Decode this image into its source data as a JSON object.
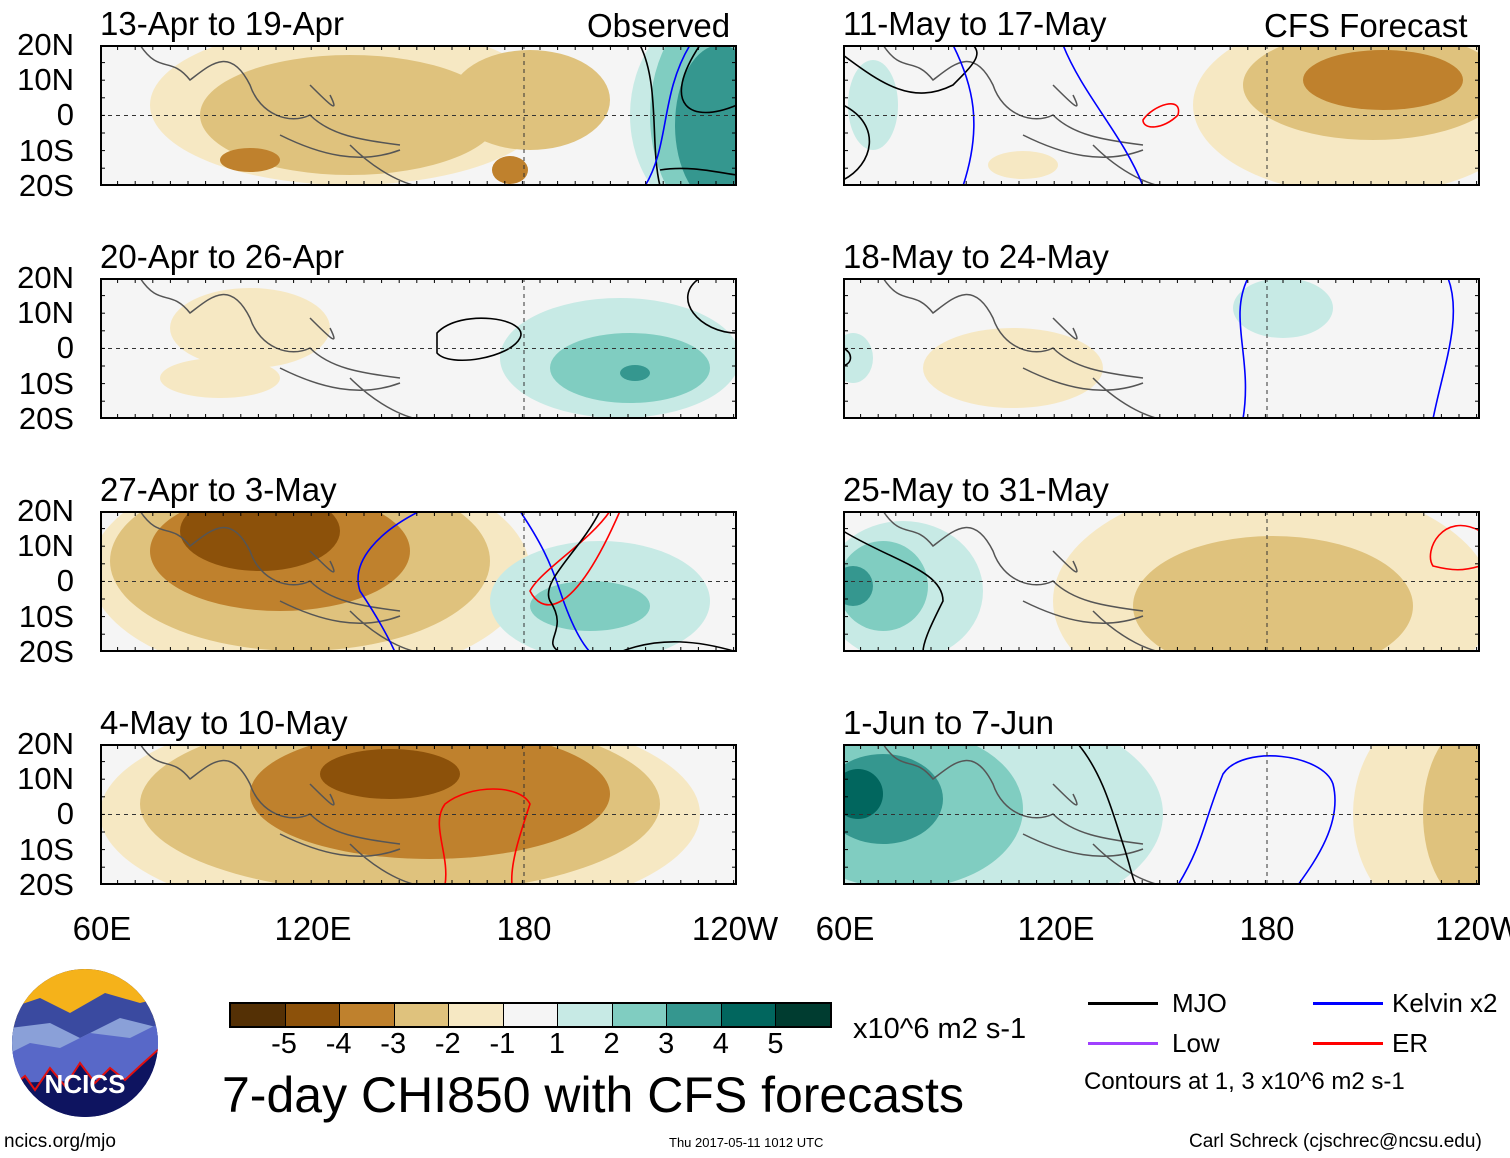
{
  "header": {
    "observed_label": "Observed",
    "forecast_label": "CFS Forecast"
  },
  "panels": {
    "observed": [
      {
        "title": "13-Apr to 19-Apr"
      },
      {
        "title": "20-Apr to 26-Apr"
      },
      {
        "title": "27-Apr to 3-May"
      },
      {
        "title": "4-May to 10-May"
      }
    ],
    "forecast": [
      {
        "title": "11-May to 17-May"
      },
      {
        "title": "18-May to 24-May"
      },
      {
        "title": "25-May to 31-May"
      },
      {
        "title": "1-Jun to 7-Jun"
      }
    ]
  },
  "axes": {
    "y_labels": [
      "20N",
      "10N",
      "0",
      "10S",
      "20S"
    ],
    "x_labels": [
      "60E",
      "120E",
      "180",
      "120W"
    ]
  },
  "colorbar": {
    "colors": [
      "#543005",
      "#8c510a",
      "#bf812d",
      "#dfc27d",
      "#f6e8c3",
      "#f5f5f5",
      "#c7eae5",
      "#80cdc1",
      "#35978f",
      "#01665e",
      "#003c30"
    ],
    "tick_labels": [
      "-5",
      "-4",
      "-3",
      "-2",
      "-1",
      "1",
      "2",
      "3",
      "4",
      "5"
    ],
    "units": "x10^6 m2 s-1"
  },
  "title": "7-day CHI850 with CFS forecasts",
  "legend": {
    "items": [
      {
        "label": "MJO",
        "color": "#000000"
      },
      {
        "label": "Kelvin x2",
        "color": "#0000ff"
      },
      {
        "label": "Low",
        "color": "#a040ff"
      },
      {
        "label": "ER",
        "color": "#ff0000"
      }
    ],
    "note": "Contours at 1, 3 x10^6 m2 s-1"
  },
  "logo": {
    "text": "NCICS"
  },
  "footer": {
    "url": "ncics.org/mjo",
    "timestamp": "Thu 2017-05-11 1012 UTC",
    "author": "Carl Schreck (cjschrec@ncsu.edu)"
  }
}
